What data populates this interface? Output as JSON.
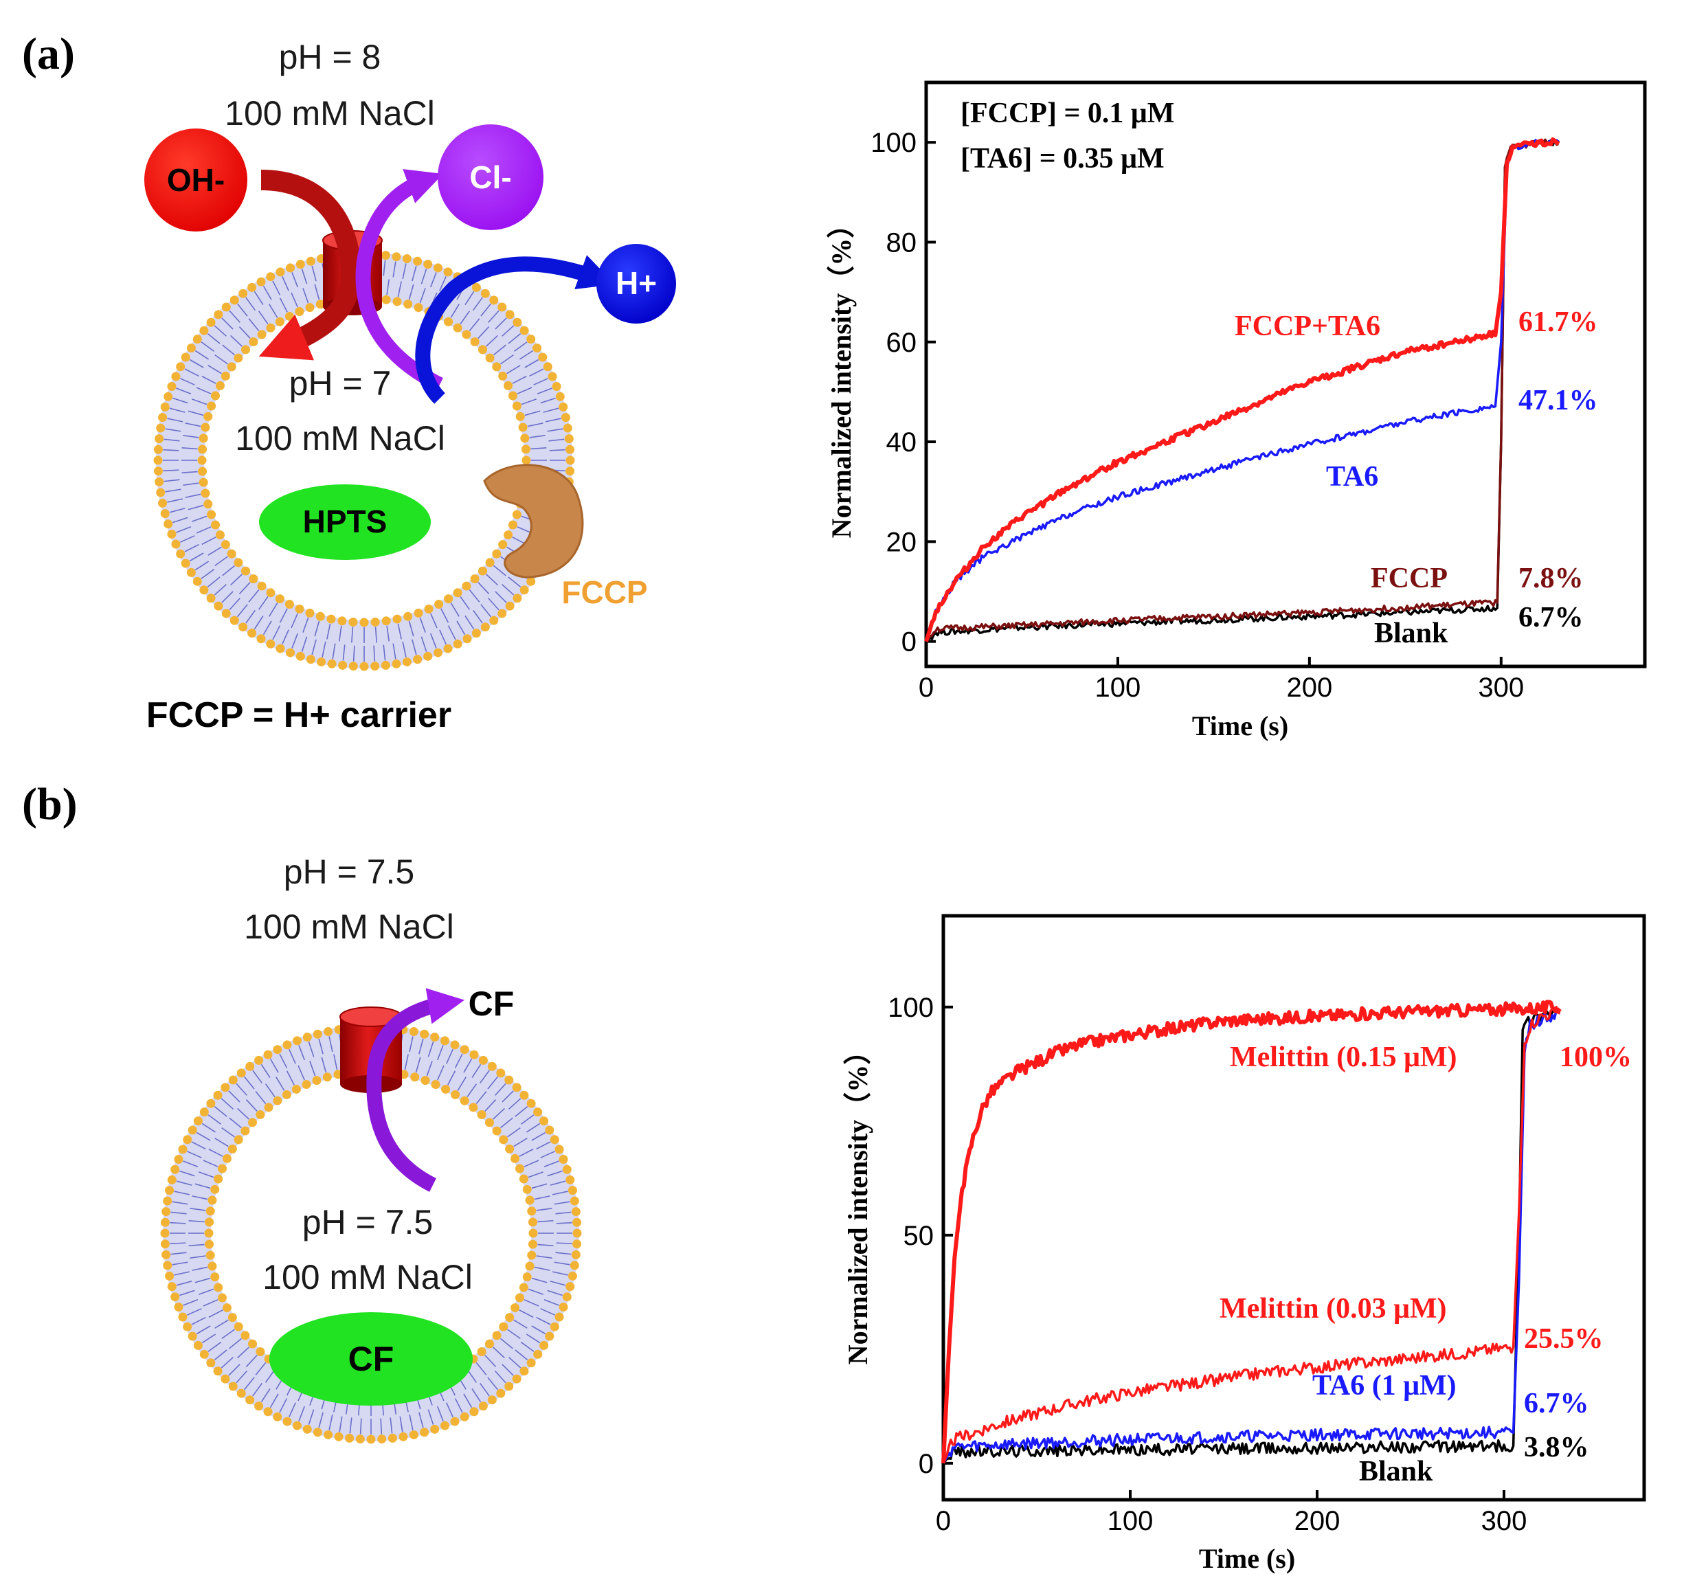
{
  "panel_a": {
    "label": "(a)",
    "outside": {
      "ph": "pH = 8",
      "salt": "100 mM NaCl"
    },
    "inside": {
      "ph": "pH = 7",
      "salt": "100 mM NaCl"
    },
    "ions": {
      "oh": "OH-",
      "cl": "Cl-",
      "h": "H+"
    },
    "dye": "HPTS",
    "carrier": "FCCP",
    "caption": "FCCP = H+ carrier"
  },
  "panel_b": {
    "label": "(b)",
    "outside": {
      "ph": "pH = 7.5",
      "salt": "100 mM NaCl"
    },
    "inside": {
      "ph": "pH = 7.5",
      "salt": "100 mM NaCl"
    },
    "released": "CF",
    "dye": "CF"
  },
  "colors": {
    "red": "#ff1a1a",
    "blue": "#1a1aff",
    "darkred": "#7b1010",
    "black": "#000000",
    "lipid_head": "#f2b233",
    "lipid_tail": "#6a6fc9",
    "green": "#22e322",
    "fccp_brown": "#c9864a",
    "fccp_text": "#f0a030",
    "purple": "#a020f0",
    "ion_blue": "#0a0ad8"
  },
  "chart_data": [
    {
      "type": "line",
      "xlabel": "Time (s)",
      "ylabel": "Normalized intensity（%）",
      "xlim": [
        0,
        375
      ],
      "ylim": [
        -5,
        112
      ],
      "xticks": [
        0,
        100,
        200,
        300
      ],
      "yticks": [
        0,
        20,
        40,
        60,
        80,
        100
      ],
      "annotation": [
        "[FCCP] = 0.1 μM",
        "[TA6] = 0.35 μM"
      ],
      "series": [
        {
          "name": "Blank",
          "color": "#000000",
          "end_label": "6.7%",
          "x": [
            0,
            5,
            50,
            100,
            150,
            200,
            250,
            298,
            300,
            302,
            305,
            312,
            320,
            330
          ],
          "y": [
            0,
            1.8,
            2.8,
            3.6,
            4.3,
            5.0,
            5.8,
            6.7,
            40,
            95,
            99,
            99.5,
            100,
            100
          ]
        },
        {
          "name": "FCCP",
          "color": "#7b1010",
          "end_label": "7.8%",
          "x": [
            0,
            5,
            50,
            100,
            150,
            200,
            250,
            298,
            300,
            302,
            305,
            312,
            320,
            330
          ],
          "y": [
            0,
            2.5,
            3.2,
            4.2,
            5.0,
            5.8,
            6.8,
            7.8,
            40,
            95,
            99,
            99.5,
            100,
            100
          ]
        },
        {
          "name": "TA6",
          "color": "#1a1aff",
          "end_label": "47.1%",
          "x": [
            0,
            5,
            15,
            30,
            50,
            75,
            100,
            150,
            200,
            250,
            297,
            300,
            303,
            306,
            312,
            320,
            330
          ],
          "y": [
            0,
            6,
            12,
            17,
            21,
            25.5,
            29,
            34.5,
            39.5,
            44,
            47.1,
            60,
            95,
            99,
            99.5,
            100,
            100
          ]
        },
        {
          "name": "FCCP+TA6",
          "color": "#ff1a1a",
          "end_label": "61.7%",
          "x": [
            0,
            5,
            15,
            30,
            50,
            75,
            100,
            125,
            150,
            175,
            200,
            225,
            250,
            275,
            297,
            300,
            303,
            306,
            312,
            320,
            330
          ],
          "y": [
            0,
            6,
            12,
            19,
            25,
            31,
            36,
            40,
            44,
            48,
            52,
            55,
            58,
            60,
            61.7,
            70,
            96,
            99,
            99.5,
            100,
            100
          ]
        }
      ]
    },
    {
      "type": "line",
      "xlabel": "Time (s)",
      "ylabel": "Normalized intensity（%）",
      "xlim": [
        0,
        375
      ],
      "ylim": [
        -8,
        120
      ],
      "xticks": [
        0,
        100,
        200,
        300
      ],
      "yticks": [
        0,
        50,
        100
      ],
      "series": [
        {
          "name": "Blank",
          "color": "#000000",
          "end_label": "3.8%",
          "x": [
            0,
            5,
            50,
            100,
            150,
            200,
            250,
            305,
            308,
            310,
            313,
            320,
            330
          ],
          "y": [
            0,
            2.5,
            2.8,
            3,
            3.2,
            3.4,
            3.6,
            3.8,
            50,
            95,
            97,
            98.5,
            99
          ]
        },
        {
          "name": "TA6 (1 μM)",
          "color": "#1a1aff",
          "end_label": "6.7%",
          "x": [
            0,
            5,
            50,
            100,
            150,
            200,
            250,
            305,
            308,
            311,
            314,
            320,
            330
          ],
          "y": [
            0,
            3.5,
            4.5,
            5.2,
            5.8,
            6.2,
            6.5,
            6.7,
            40,
            90,
            96,
            97,
            99
          ]
        },
        {
          "name": "Melittin (0.03 μM)",
          "color": "#ff1a1a",
          "end_label": "25.5%",
          "x": [
            0,
            5,
            25,
            50,
            75,
            100,
            125,
            150,
            175,
            200,
            225,
            250,
            275,
            305,
            308,
            311,
            314,
            320,
            330
          ],
          "y": [
            0,
            5,
            8,
            11,
            13.5,
            15.5,
            17,
            18.5,
            20,
            21,
            22,
            23,
            24,
            25.5,
            55,
            92,
            96,
            98,
            99
          ]
        },
        {
          "name": "Melittin (0.15 μM)",
          "color": "#ff1a1a",
          "end_label": "100%",
          "x": [
            0,
            3,
            6,
            10,
            15,
            20,
            25,
            30,
            40,
            50,
            60,
            75,
            100,
            125,
            150,
            200,
            250,
            300,
            330
          ],
          "y": [
            0,
            25,
            45,
            60,
            70,
            77,
            81,
            83,
            86,
            88,
            90,
            92,
            94,
            95.5,
            97,
            98,
            99,
            99.5,
            100
          ]
        }
      ]
    }
  ]
}
